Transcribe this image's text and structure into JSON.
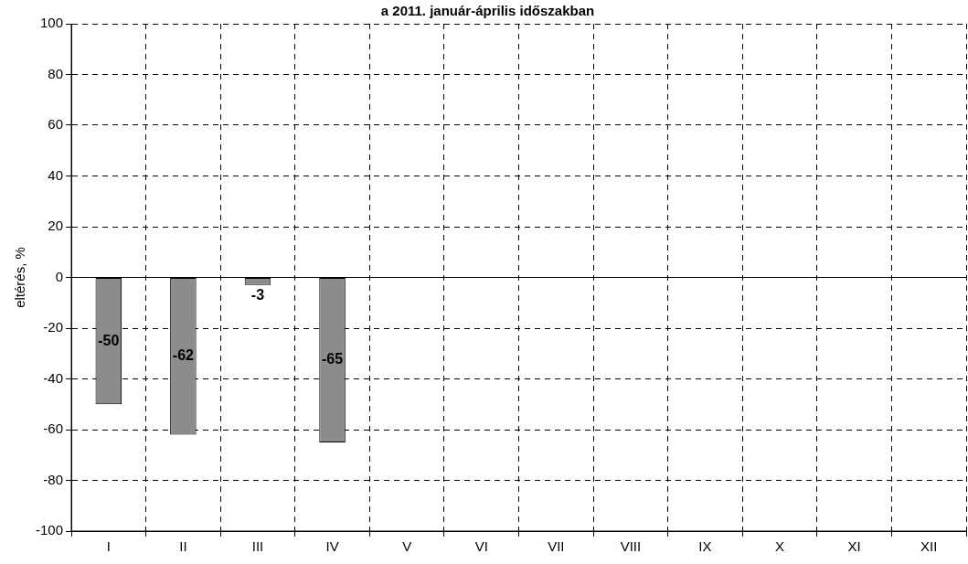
{
  "chart_data": {
    "type": "bar",
    "title": "a 2011. január-április időszakban",
    "ylabel": "eltérés, %",
    "categories": [
      "I",
      "II",
      "III",
      "IV",
      "V",
      "VI",
      "VII",
      "VIII",
      "IX",
      "X",
      "XI",
      "XII"
    ],
    "values": [
      -50,
      -62,
      -3,
      -65,
      null,
      null,
      null,
      null,
      null,
      null,
      null,
      null
    ],
    "color": "#8c8c8c",
    "ylim": [
      -100,
      100
    ],
    "yticks": [
      -100,
      -80,
      -60,
      -40,
      -20,
      0,
      20,
      40,
      60,
      80,
      100
    ],
    "grid": true,
    "data_labels": true,
    "legend": false
  }
}
